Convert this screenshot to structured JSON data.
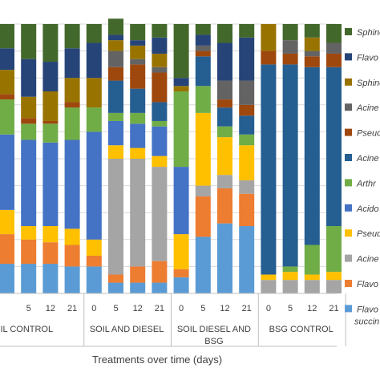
{
  "chart_data": {
    "type": "bar",
    "stacked": true,
    "normalized": true,
    "xlabel": "Treatments over time (days)",
    "ylabel": "",
    "ylim": [
      0,
      100
    ],
    "grid": true,
    "legend_position": "right",
    "groups": [
      {
        "label": "IL CONTROL",
        "categories": [
          "",
          "5",
          "12",
          "21"
        ]
      },
      {
        "label": "SOIL AND DIESEL",
        "categories": [
          "0",
          "5",
          "12",
          "21"
        ]
      },
      {
        "label": "SOIL DIESEL AND BSG",
        "categories": [
          "0",
          "5",
          "12",
          "21"
        ]
      },
      {
        "label": "BSG CONTROL",
        "categories": [
          "0",
          "5",
          "12",
          "21"
        ]
      }
    ],
    "series": [
      {
        "name": "Flavo succin",
        "color": "#5b9bd5",
        "values": [
          11,
          11,
          11,
          10,
          10,
          4,
          4,
          4,
          6,
          21,
          26,
          25,
          0,
          0,
          0,
          0
        ]
      },
      {
        "name": "Flavo",
        "color": "#ed7d31",
        "values": [
          11,
          9,
          8,
          8,
          4,
          3,
          6,
          8,
          3,
          15,
          13,
          12,
          0,
          0,
          0,
          0
        ]
      },
      {
        "name": "Acine",
        "color": "#a5a5a5",
        "values": [
          0,
          0,
          0,
          0,
          0,
          43,
          40,
          35,
          0,
          4,
          5,
          5,
          5,
          5,
          5,
          5
        ]
      },
      {
        "name": "Pseud",
        "color": "#ffc000",
        "values": [
          9,
          5,
          6,
          6,
          6,
          5,
          4,
          4,
          13,
          27,
          14,
          13,
          2,
          3,
          2,
          3
        ]
      },
      {
        "name": "Acido",
        "color": "#4472c4",
        "values": [
          28,
          32,
          31,
          33,
          40,
          9,
          9,
          11,
          25,
          0,
          0,
          0,
          0,
          0,
          0,
          0
        ]
      },
      {
        "name": "Arthr",
        "color": "#70ad47",
        "values": [
          13,
          6,
          7,
          12,
          9,
          3,
          4,
          2,
          28,
          10,
          4,
          4,
          0,
          2,
          11,
          17
        ]
      },
      {
        "name": "Acine",
        "color": "#255e91",
        "values": [
          0,
          0,
          0,
          0,
          0,
          12,
          9,
          7,
          0,
          11,
          7,
          7,
          78,
          75,
          66,
          59
        ]
      },
      {
        "name": "Pseud",
        "color": "#9e480e",
        "values": [
          2,
          2,
          1,
          2,
          0,
          5,
          9,
          11,
          0,
          2,
          3,
          4,
          5,
          4,
          4,
          5
        ]
      },
      {
        "name": "Acine",
        "color": "#636363",
        "values": [
          0,
          0,
          0,
          0,
          0,
          6,
          2,
          2,
          0,
          2,
          7,
          9,
          0,
          5,
          2,
          4
        ]
      },
      {
        "name": "Sphino",
        "color": "#997300",
        "values": [
          9,
          8,
          11,
          9,
          11,
          4,
          5,
          5,
          2,
          0,
          0,
          0,
          10,
          0,
          5,
          0
        ]
      },
      {
        "name": "Flavo",
        "color": "#264478",
        "values": [
          8,
          14,
          11,
          11,
          13,
          2,
          2,
          6,
          3,
          4,
          14,
          16,
          0,
          0,
          0,
          0
        ]
      },
      {
        "name": "Sphino",
        "color": "#43682b",
        "values": [
          9,
          13,
          14,
          9,
          7,
          6,
          6,
          5,
          20,
          4,
          7,
          5,
          0,
          6,
          5,
          7
        ]
      }
    ]
  }
}
